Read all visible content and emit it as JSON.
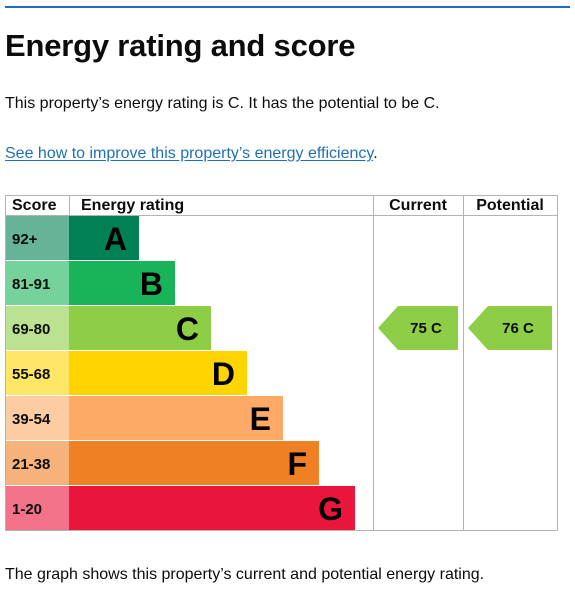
{
  "page": {
    "heading": "Energy rating and score",
    "summary": "This property’s energy rating is C. It has the potential to be C.",
    "link_text": "See how to improve this property’s energy efficiency",
    "link_suffix": ".",
    "footer": "The graph shows this property’s current and potential energy rating."
  },
  "chart_data": {
    "type": "bar",
    "headers": {
      "score": "Score",
      "rating": "Energy rating",
      "current": "Current",
      "potential": "Potential"
    },
    "bands": [
      {
        "letter": "A",
        "range": "92+",
        "color": "#008054",
        "score_bg": "#66b398",
        "text_color": "#000000"
      },
      {
        "letter": "B",
        "range": "81-91",
        "color": "#19b459",
        "score_bg": "#75d29b",
        "text_color": "#000000"
      },
      {
        "letter": "C",
        "range": "69-80",
        "color": "#8dce46",
        "score_bg": "#bbe290",
        "text_color": "#000000"
      },
      {
        "letter": "D",
        "range": "55-68",
        "color": "#ffd500",
        "score_bg": "#ffe666",
        "text_color": "#000000"
      },
      {
        "letter": "E",
        "range": "39-54",
        "color": "#fcaa65",
        "score_bg": "#fdcca3",
        "text_color": "#000000"
      },
      {
        "letter": "F",
        "range": "21-38",
        "color": "#ef8023",
        "score_bg": "#f5b37b",
        "text_color": "#000000"
      },
      {
        "letter": "G",
        "range": "1-20",
        "color": "#e9153b",
        "score_bg": "#f27389",
        "text_color": "#000000"
      }
    ],
    "current": {
      "score": 75,
      "letter": "C",
      "label": "75  C",
      "color": "#8dce46"
    },
    "potential": {
      "score": 76,
      "letter": "C",
      "label": "76  C",
      "color": "#8dce46"
    }
  }
}
